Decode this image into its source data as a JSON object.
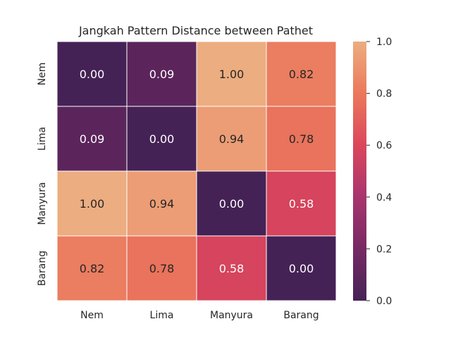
{
  "chart_data": {
    "type": "heatmap",
    "title": "Jangkah Pattern Distance between Pathet",
    "xlabel": "",
    "ylabel": "",
    "x_categories": [
      "Nem",
      "Lima",
      "Manyura",
      "Barang"
    ],
    "y_categories": [
      "Nem",
      "Lima",
      "Manyura",
      "Barang"
    ],
    "values": [
      [
        0.0,
        0.09,
        1.0,
        0.82
      ],
      [
        0.09,
        0.0,
        0.94,
        0.78
      ],
      [
        1.0,
        0.94,
        0.0,
        0.58
      ],
      [
        0.82,
        0.78,
        0.58,
        0.0
      ]
    ],
    "value_labels": [
      [
        "0.00",
        "0.09",
        "1.00",
        "0.82"
      ],
      [
        "0.09",
        "0.00",
        "0.94",
        "0.78"
      ],
      [
        "1.00",
        "0.94",
        "0.00",
        "0.58"
      ],
      [
        "0.82",
        "0.78",
        "0.58",
        "0.00"
      ]
    ],
    "colorbar": {
      "range": [
        0.0,
        1.0
      ],
      "ticks": [
        0.0,
        0.2,
        0.4,
        0.6,
        0.8,
        1.0
      ],
      "tick_labels": [
        "0.0",
        "0.2",
        "0.4",
        "0.6",
        "0.8",
        "1.0"
      ],
      "colormap": "flare",
      "position": "right"
    }
  }
}
